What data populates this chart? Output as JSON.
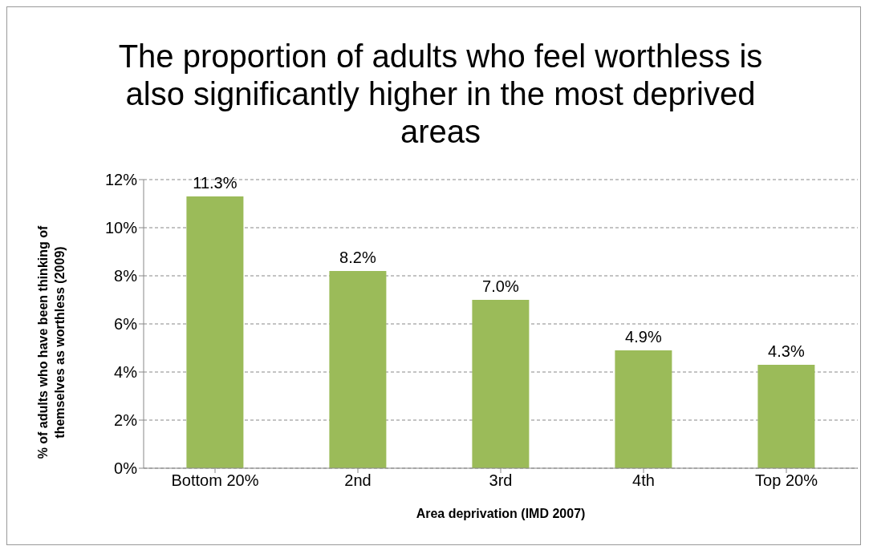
{
  "chart_data": {
    "type": "bar",
    "title": "The proportion of adults who feel worthless is also significantly higher in the most deprived areas",
    "xlabel": "Area deprivation (IMD 2007)",
    "ylabel": "% of adults who have been thinking of themselves as worthless (2009)",
    "categories": [
      "Bottom 20%",
      "2nd",
      "3rd",
      "4th",
      "Top 20%"
    ],
    "values": [
      11.3,
      8.2,
      7.0,
      4.9,
      4.3
    ],
    "value_labels": [
      "11.3%",
      "8.2%",
      "7.0%",
      "4.9%",
      "4.3%"
    ],
    "color": "#9bbb59",
    "ylim": [
      0,
      12
    ],
    "yticks": [
      {
        "value": 0,
        "label": "0%"
      },
      {
        "value": 2,
        "label": "2%"
      },
      {
        "value": 4,
        "label": "4%"
      },
      {
        "value": 6,
        "label": "6%"
      },
      {
        "value": 8,
        "label": "8%"
      },
      {
        "value": 10,
        "label": "10%"
      },
      {
        "value": 12,
        "label": "12%"
      }
    ],
    "grid": "y"
  }
}
